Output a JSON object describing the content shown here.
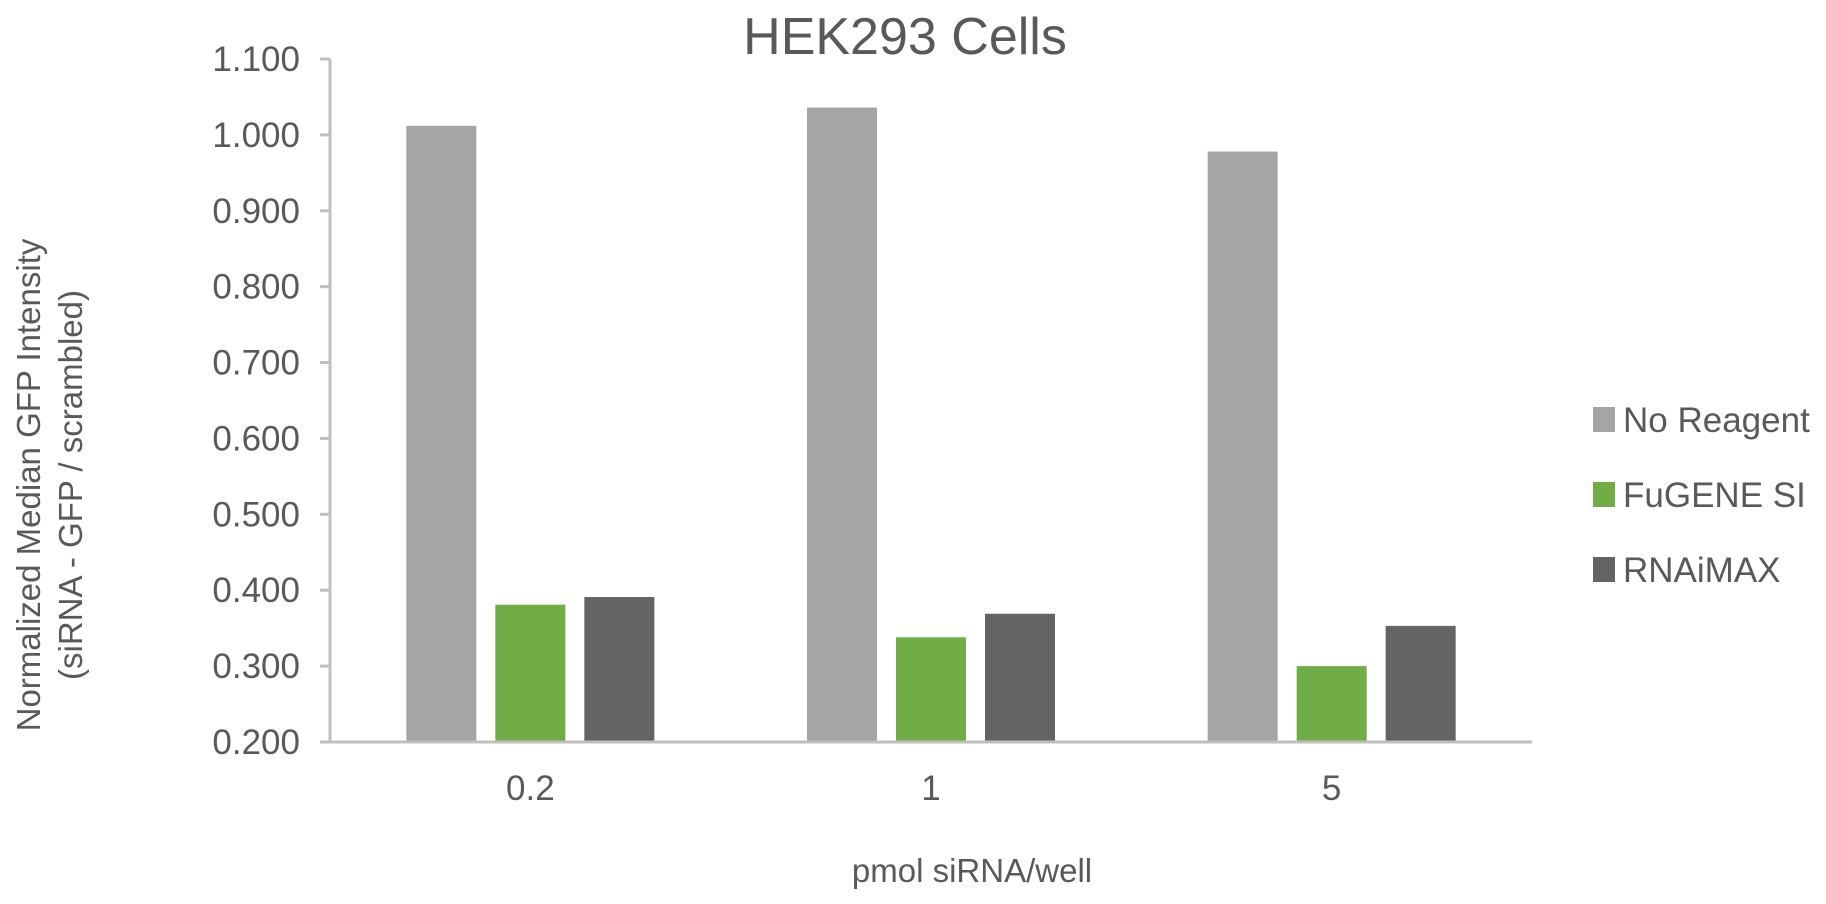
{
  "chart_data": {
    "type": "bar",
    "title": "HEK293 Cells",
    "xlabel": "pmol siRNA/well",
    "ylabel": [
      "Normalized Median GFP Intensity",
      "(siRNA - GFP / scrambled)"
    ],
    "categories": [
      "0.2",
      "1",
      "5"
    ],
    "ylim": [
      0.2,
      1.1
    ],
    "yticks": [
      0.2,
      0.3,
      0.4,
      0.5,
      0.6,
      0.7,
      0.8,
      0.9,
      1.0,
      1.1
    ],
    "ytick_labels": [
      "0.200",
      "0.300",
      "0.400",
      "0.500",
      "0.600",
      "0.700",
      "0.800",
      "0.900",
      "1.000",
      "1.100"
    ],
    "grid": false,
    "legend_position": "right",
    "series": [
      {
        "name": "No Reagent",
        "color": "#a5a5a5",
        "values": [
          1.012,
          1.036,
          0.978
        ]
      },
      {
        "name": "FuGENE SI",
        "color": "#70ad47",
        "values": [
          0.381,
          0.338,
          0.3
        ]
      },
      {
        "name": "RNAiMAX",
        "color": "#636463",
        "values": [
          0.391,
          0.369,
          0.353
        ]
      }
    ]
  }
}
